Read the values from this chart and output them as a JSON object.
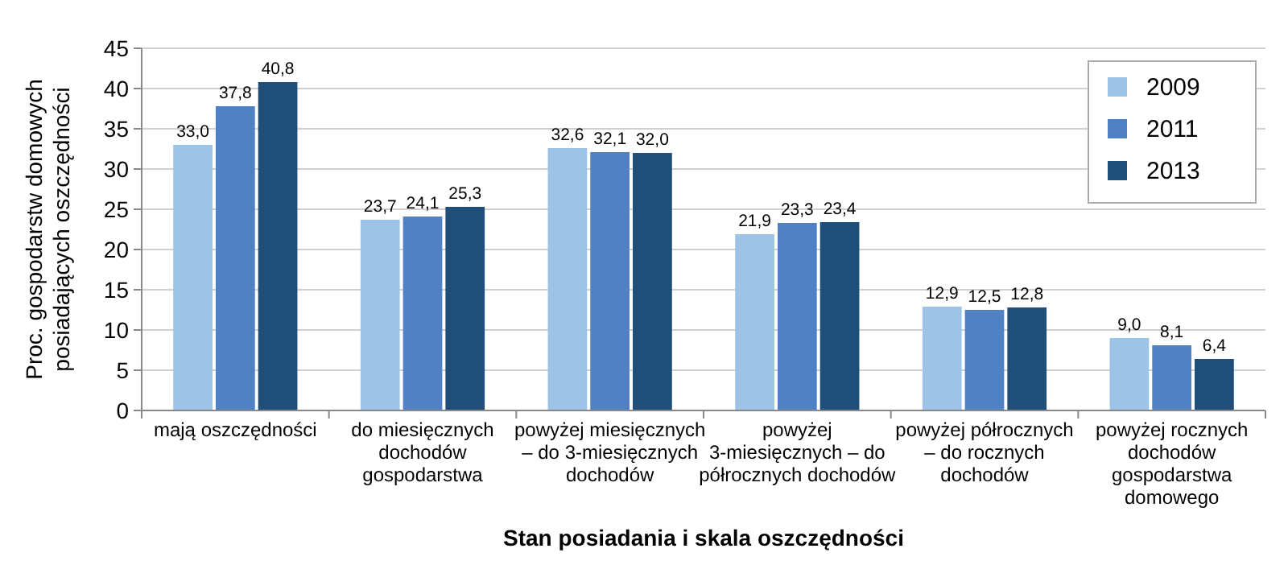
{
  "chart_data": {
    "type": "bar",
    "xlabel": "Stan posiadania i skala oszczędności",
    "ylabel": "Proc. gospodarstw domowych posiadających oszczędności",
    "categories": [
      "mają oszczędności",
      "do miesięcznych dochodów gospodarstwa",
      "powyżej miesięcznych – do 3-miesięcznych dochodów",
      "powyżej 3-miesięcznych – do półrocznych dochodów",
      "powyżej półrocznych – do rocznych dochodów",
      "powyżej rocznych dochodów gospodarstwa domowego"
    ],
    "series": [
      {
        "name": "2009",
        "color": "#9dc3e6",
        "values": [
          33.0,
          23.7,
          32.6,
          21.9,
          12.9,
          9.0
        ],
        "value_labels": [
          "33,0",
          "23,7",
          "32,6",
          "21,9",
          "12,9",
          "9,0"
        ]
      },
      {
        "name": "2011",
        "color": "#4f81c4",
        "values": [
          37.8,
          24.1,
          32.1,
          23.3,
          12.5,
          8.1
        ],
        "value_labels": [
          "37,8",
          "24,1",
          "32,1",
          "23,3",
          "12,5",
          "8,1"
        ]
      },
      {
        "name": "2013",
        "color": "#1f4e79",
        "values": [
          40.8,
          25.3,
          32.0,
          23.4,
          12.8,
          6.4
        ],
        "value_labels": [
          "40,8",
          "25,3",
          "32,0",
          "23,4",
          "12,8",
          "6,4"
        ]
      }
    ],
    "ylim": [
      0,
      45
    ],
    "yticks": [
      0,
      5,
      10,
      15,
      20,
      25,
      30,
      35,
      40,
      45
    ],
    "grid": "y",
    "legend": "top right"
  }
}
